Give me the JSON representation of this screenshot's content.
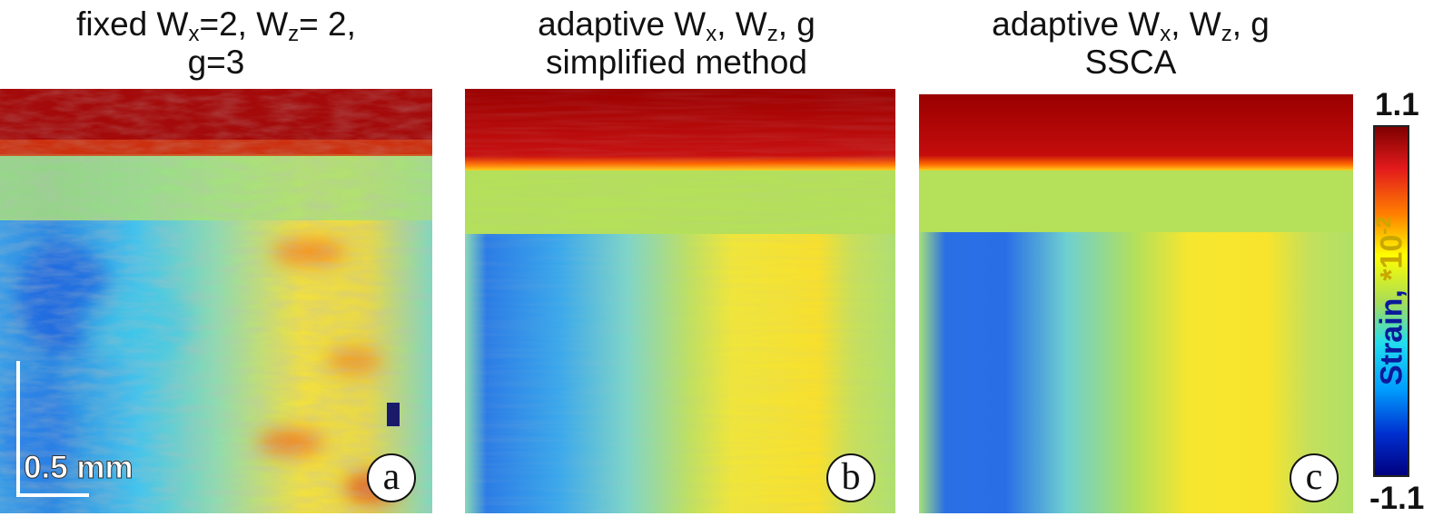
{
  "panels": [
    {
      "title_line1_prefix": "fixed W",
      "title_line1_sub1": "x",
      "title_line1_mid": "=2, W",
      "title_line1_sub2": "z",
      "title_line1_suffix": "= 2,",
      "title_line2": "g=3",
      "letter": "a"
    },
    {
      "title_line1_prefix": "adaptive W",
      "title_line1_sub1": "x",
      "title_line1_mid": ", W",
      "title_line1_sub2": "z",
      "title_line1_suffix": ", g",
      "title_line2": "simplified method",
      "letter": "b"
    },
    {
      "title_line1_prefix": "adaptive W",
      "title_line1_sub1": "x",
      "title_line1_mid": ", W",
      "title_line1_sub2": "z",
      "title_line1_suffix": ", g",
      "title_line2": "SSCA",
      "letter": "c"
    }
  ],
  "scale_bar": {
    "label": "0.5 mm"
  },
  "colorbar": {
    "max_label": "1.1",
    "min_label": "-1.1",
    "label_main": "Strain, ",
    "label_exp_base": "*10",
    "label_exp_power": "-2",
    "colormap": "jet"
  },
  "colors": {
    "dark_red": "#9b0000",
    "orange": "#ff6a00",
    "yellow_green": "#b4e05a",
    "cyan": "#34d0ee",
    "blue": "#1f6ee8",
    "yellow": "#ffee20"
  }
}
